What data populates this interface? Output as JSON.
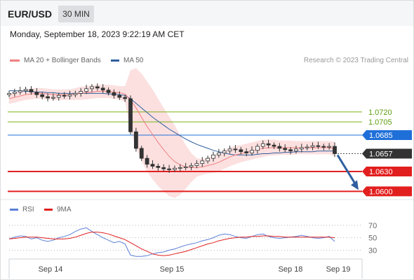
{
  "header": {
    "symbol": "EUR/USD",
    "timeframe": "30 MIN"
  },
  "timestamp": "Monday, September 18, 2023 9:22:19 AM CET",
  "legend": {
    "ma20": {
      "label": "MA 20 + Bollinger Bands",
      "color": "#f08080"
    },
    "ma50": {
      "label": "MA 50",
      "color": "#2f5f9f"
    }
  },
  "credit": "Research © 2023 Trading Central",
  "rsi_legend": {
    "rsi": {
      "label": "RSI",
      "color": "#5b7fd6"
    },
    "ma9": {
      "label": "9MA",
      "color": "#e02020"
    }
  },
  "chart_data": {
    "type": "candlestick",
    "y_range": [
      1.0592,
      1.0778
    ],
    "levels": [
      {
        "value": 1.072,
        "label": "1.0720",
        "kind": "resistance",
        "color": "#7ab317"
      },
      {
        "value": 1.0705,
        "label": "1.0705",
        "kind": "resistance",
        "color": "#7ab317"
      },
      {
        "value": 1.0685,
        "label": "1.0685",
        "kind": "pivot",
        "color": "#1f6fd8"
      },
      {
        "value": 1.0657,
        "label": "1.0657",
        "kind": "last-price",
        "color": "#333333"
      },
      {
        "value": 1.063,
        "label": "1.0630",
        "kind": "support",
        "color": "#e21f1f"
      },
      {
        "value": 1.06,
        "label": "1.0600",
        "kind": "support",
        "color": "#e21f1f"
      }
    ],
    "forecast_arrow": {
      "from": 1.0657,
      "to": 1.06
    },
    "price_series": [
      1.0748,
      1.075,
      1.0752,
      1.0754,
      1.075,
      1.0746,
      1.0743,
      1.0741,
      1.0742,
      1.0745,
      1.0744,
      1.0746,
      1.0748,
      1.0751,
      1.0755,
      1.0758,
      1.0756,
      1.0753,
      1.0749,
      1.0745,
      1.0742,
      1.074,
      1.069,
      1.0665,
      1.065,
      1.0641,
      1.0638,
      1.0636,
      1.0634,
      1.0633,
      1.0635,
      1.0636,
      1.0637,
      1.0639,
      1.0642,
      1.0646,
      1.065,
      1.0655,
      1.0658,
      1.0661,
      1.0664,
      1.0663,
      1.066,
      1.0658,
      1.0662,
      1.0668,
      1.0672,
      1.067,
      1.0668,
      1.0665,
      1.0663,
      1.0661,
      1.0664,
      1.0666,
      1.0667,
      1.0669,
      1.0668,
      1.0667,
      1.0668,
      1.0657
    ],
    "ma20": [
      1.074,
      1.0742,
      1.0744,
      1.0746,
      1.0747,
      1.0748,
      1.0748,
      1.0747,
      1.0746,
      1.0746,
      1.0746,
      1.0746,
      1.0747,
      1.0748,
      1.0749,
      1.075,
      1.0751,
      1.0751,
      1.0751,
      1.075,
      1.0749,
      1.0747,
      1.0738,
      1.0726,
      1.0712,
      1.0698,
      1.0686,
      1.0674,
      1.0663,
      1.0653,
      1.0645,
      1.064,
      1.0637,
      1.0636,
      1.0636,
      1.0637,
      1.0639,
      1.0641,
      1.0644,
      1.0648,
      1.0652,
      1.0655,
      1.0657,
      1.0659,
      1.0661,
      1.0663,
      1.0665,
      1.0666,
      1.0666,
      1.0666,
      1.0666,
      1.0666,
      1.0666,
      1.0666,
      1.0666,
      1.0666,
      1.0666,
      1.0666,
      1.0666,
      1.0664
    ],
    "ma50": [
      1.0752,
      1.0752,
      1.0752,
      1.0751,
      1.0751,
      1.075,
      1.075,
      1.0749,
      1.0749,
      1.0748,
      1.0748,
      1.0748,
      1.0748,
      1.0748,
      1.0748,
      1.0748,
      1.0748,
      1.0748,
      1.0747,
      1.0747,
      1.0746,
      1.0745,
      1.074,
      1.0733,
      1.0726,
      1.0719,
      1.0712,
      1.0706,
      1.07,
      1.0694,
      1.0689,
      1.0684,
      1.0679,
      1.0675,
      1.0671,
      1.0668,
      1.0665,
      1.0662,
      1.066,
      1.0658,
      1.0656,
      1.0655,
      1.0655,
      1.0655,
      1.0655,
      1.0656,
      1.0657,
      1.0657,
      1.0658,
      1.0658,
      1.0659,
      1.0659,
      1.066,
      1.066,
      1.066,
      1.066,
      1.0661,
      1.0661,
      1.0661,
      1.0661
    ],
    "bb_width": [
      0.0008,
      0.0008,
      0.0008,
      0.0008,
      0.0008,
      0.0008,
      0.0008,
      0.0008,
      0.0008,
      0.0008,
      0.0008,
      0.0008,
      0.0009,
      0.001,
      0.001,
      0.001,
      0.001,
      0.001,
      0.001,
      0.001,
      0.001,
      0.0012,
      0.0045,
      0.006,
      0.0066,
      0.0068,
      0.0068,
      0.0066,
      0.0063,
      0.006,
      0.0055,
      0.0045,
      0.0033,
      0.0022,
      0.0014,
      0.0012,
      0.0012,
      0.0013,
      0.0014,
      0.0014,
      0.0014,
      0.0014,
      0.0013,
      0.0013,
      0.0013,
      0.0013,
      0.0013,
      0.0012,
      0.0012,
      0.0011,
      0.0011,
      0.0011,
      0.001,
      0.001,
      0.001,
      0.001,
      0.001,
      0.001,
      0.001,
      0.0011
    ],
    "rsi": {
      "y_range": [
        18,
        80
      ],
      "levels": [
        70,
        50,
        30
      ],
      "rsi": [
        48,
        51,
        53,
        52,
        48,
        50,
        46,
        44,
        46,
        50,
        52,
        55,
        60,
        64,
        66,
        60,
        55,
        50,
        46,
        42,
        44,
        40,
        22,
        20,
        20,
        21,
        24,
        26,
        27,
        30,
        32,
        35,
        38,
        40,
        42,
        45,
        47,
        50,
        54,
        56,
        55,
        52,
        50,
        49,
        52,
        55,
        56,
        52,
        50,
        49,
        50,
        51,
        52,
        54,
        52,
        50,
        49,
        50,
        52,
        44
      ],
      "ma9": [
        48,
        49,
        50,
        51,
        51,
        51,
        50,
        49,
        48,
        48,
        48,
        49,
        51,
        54,
        57,
        59,
        59,
        58,
        56,
        53,
        50,
        47,
        42,
        37,
        32,
        28,
        24,
        22,
        21,
        22,
        24,
        26,
        28,
        31,
        34,
        37,
        40,
        42,
        45,
        47,
        49,
        50,
        51,
        51,
        52,
        52,
        53,
        53,
        52,
        52,
        51,
        51,
        51,
        51,
        51,
        51,
        51,
        51,
        51,
        50
      ]
    },
    "x_ticks": [
      "Sep 14",
      "Sep 15",
      "Sep 18",
      "Sep 19"
    ]
  }
}
